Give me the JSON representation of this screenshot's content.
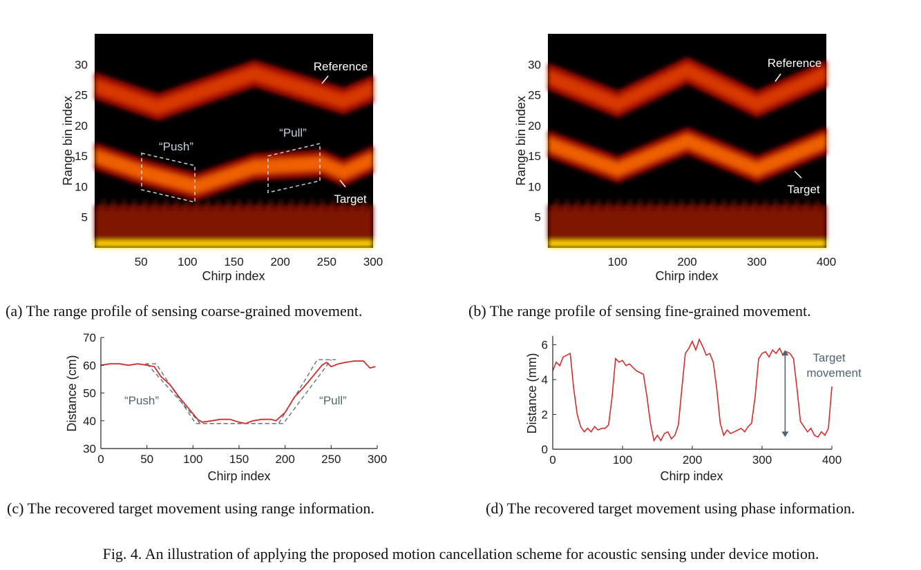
{
  "colors": {
    "curve": "#d42a2a",
    "dashed": "#5c7080",
    "axis": "#222222",
    "annotation_dark": "#4f6470",
    "annotation_light": "#ffffff",
    "annotation_box": "#c8d0e0"
  },
  "captions": {
    "a": "(a) The range profile of sensing coarse-grained movement.",
    "b": "(b) The range profile of sensing fine-grained movement.",
    "c": "(c) The recovered target movement using range information.",
    "d": "(d) The recovered target movement using phase information.",
    "figure": "Fig. 4.  An illustration of applying the proposed motion cancellation scheme for acoustic sensing under device motion."
  },
  "chart_data": [
    {
      "id": "a",
      "type": "heatmap",
      "colormap": "hot",
      "xlabel": "Chirp index",
      "ylabel": "Range bin index",
      "xlim": [
        0,
        300
      ],
      "ylim": [
        0,
        35
      ],
      "xticks": [
        50,
        100,
        150,
        200,
        250,
        300
      ],
      "yticks": [
        5,
        10,
        15,
        20,
        25,
        30
      ],
      "bands": [
        {
          "name": "reference",
          "x": [
            0,
            68,
            172,
            268,
            300
          ],
          "y": [
            26.5,
            23,
            28.5,
            24,
            26
          ],
          "intensity": 0.55
        },
        {
          "name": "target",
          "x": [
            0,
            55,
            110,
            172,
            245,
            268,
            300
          ],
          "y": [
            15,
            12.2,
            10,
            13.2,
            13.8,
            12.3,
            14.5
          ],
          "intensity": 0.65
        }
      ],
      "annotations": {
        "reference": "Reference",
        "target": "Target",
        "push": "“Push”",
        "pull": "“Pull”"
      }
    },
    {
      "id": "b",
      "type": "heatmap",
      "colormap": "hot",
      "xlabel": "Chirp index",
      "ylabel": "Range bin index",
      "xlim": [
        0,
        400
      ],
      "ylim": [
        0,
        35
      ],
      "xticks": [
        100,
        200,
        300,
        400
      ],
      "yticks": [
        5,
        10,
        15,
        20,
        25,
        30
      ],
      "bands": [
        {
          "name": "reference",
          "x": [
            0,
            100,
            200,
            300,
            400
          ],
          "y": [
            28,
            23.5,
            29,
            23.5,
            28.5
          ],
          "intensity": 0.55
        },
        {
          "name": "target",
          "x": [
            0,
            100,
            200,
            300,
            400
          ],
          "y": [
            17,
            12.8,
            17.5,
            12.8,
            17.5
          ],
          "intensity": 0.6
        }
      ],
      "annotations": {
        "reference": "Reference",
        "target": "Target"
      }
    },
    {
      "id": "c",
      "type": "line",
      "xlabel": "Chirp index",
      "ylabel": "Distance (cm)",
      "xlim": [
        0,
        300
      ],
      "ylim": [
        30,
        70
      ],
      "xticks": [
        0,
        50,
        100,
        150,
        200,
        250,
        300
      ],
      "yticks": [
        30,
        40,
        50,
        60,
        70
      ],
      "series": [
        {
          "x": [
            0,
            10,
            20,
            30,
            40,
            50,
            58,
            65,
            75,
            85,
            95,
            105,
            110,
            120,
            130,
            140,
            150,
            157,
            165,
            175,
            185,
            190,
            200,
            210,
            220,
            230,
            240,
            245,
            250,
            258,
            265,
            275,
            285,
            292,
            298
          ],
          "y": [
            60,
            60.5,
            60.5,
            60,
            60.5,
            60,
            59.5,
            56,
            53,
            48.5,
            44.5,
            40.5,
            39.5,
            40,
            40.5,
            40.5,
            39.5,
            39,
            40,
            40.5,
            40.5,
            40,
            43,
            48.5,
            52,
            56,
            60,
            61,
            59.5,
            60.5,
            61,
            61.5,
            61.5,
            59,
            59.5
          ]
        }
      ],
      "reference_lines": [
        {
          "style": "dashed",
          "x": [
            48,
            60,
            103,
            193,
            235,
            255
          ],
          "y": [
            60.5,
            60.5,
            39,
            39,
            62,
            62
          ]
        },
        {
          "style": "dashed",
          "x": [
            50,
            108,
            198,
            250
          ],
          "y": [
            60.5,
            39,
            39,
            62
          ]
        }
      ],
      "annotations": {
        "push": "“Push”",
        "pull": "“Pull”"
      }
    },
    {
      "id": "d",
      "type": "line",
      "xlabel": "Chirp index",
      "ylabel": "Distance (mm)",
      "xlim": [
        0,
        400
      ],
      "ylim": [
        0,
        6.5
      ],
      "xticks": [
        0,
        100,
        200,
        300,
        400
      ],
      "yticks": [
        0,
        2,
        4,
        6
      ],
      "series": [
        {
          "x": [
            0,
            5,
            10,
            15,
            20,
            25,
            30,
            35,
            40,
            45,
            50,
            55,
            60,
            65,
            70,
            75,
            80,
            85,
            90,
            95,
            100,
            105,
            110,
            115,
            120,
            125,
            130,
            135,
            140,
            145,
            150,
            155,
            160,
            165,
            170,
            175,
            180,
            185,
            190,
            195,
            200,
            205,
            210,
            215,
            220,
            225,
            230,
            235,
            240,
            245,
            250,
            255,
            260,
            265,
            270,
            275,
            280,
            285,
            290,
            295,
            300,
            305,
            310,
            315,
            320,
            325,
            330,
            335,
            340,
            345,
            350,
            355,
            360,
            365,
            370,
            375,
            380,
            385,
            390,
            395,
            400
          ],
          "y": [
            4.5,
            5.0,
            4.8,
            5.3,
            5.4,
            5.5,
            3.5,
            2.0,
            1.3,
            1.0,
            1.2,
            1.0,
            1.3,
            1.1,
            1.2,
            1.2,
            1.4,
            3.0,
            5.2,
            5.0,
            5.1,
            4.8,
            4.9,
            4.7,
            4.5,
            4.4,
            4.3,
            3.0,
            1.5,
            0.5,
            0.8,
            0.5,
            0.9,
            1.0,
            0.6,
            0.8,
            1.4,
            3.5,
            5.5,
            5.8,
            6.2,
            5.7,
            6.3,
            5.9,
            5.4,
            5.5,
            5.0,
            3.5,
            1.5,
            0.8,
            1.1,
            0.9,
            1.0,
            1.1,
            1.2,
            1.0,
            1.3,
            1.5,
            3.0,
            5.2,
            5.5,
            5.6,
            5.3,
            5.7,
            5.5,
            5.8,
            5.4,
            5.6,
            5.5,
            5.2,
            3.5,
            1.6,
            1.3,
            1.0,
            1.2,
            0.8,
            0.7,
            1.0,
            0.8,
            1.2,
            3.6
          ]
        }
      ],
      "arrow": {
        "x": 333,
        "y": [
          0.7,
          5.7
        ],
        "style": "double"
      },
      "annotations": {
        "target": [
          "Target",
          "movement"
        ]
      }
    }
  ]
}
